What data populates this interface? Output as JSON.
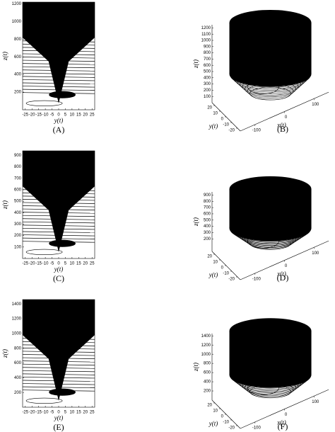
{
  "chart_data": [
    {
      "type": "line",
      "caption": "(A)",
      "x_label": "y(t)",
      "y_label": "z(t)",
      "xlim": [
        -27,
        27
      ],
      "xticks": [
        -25,
        -20,
        -15,
        -10,
        -5,
        0,
        5,
        10,
        15,
        20,
        25
      ],
      "ylim": [
        0,
        1220
      ],
      "yticks": [
        200,
        400,
        600,
        800,
        1000,
        1200
      ]
    },
    {
      "type": "line3d",
      "caption": "(B)",
      "x_label": "x(t)",
      "y_label": "y(t)",
      "z_label": "z(t)",
      "zlim": [
        0,
        1250
      ],
      "zticks": [
        100,
        200,
        300,
        400,
        500,
        600,
        700,
        800,
        900,
        1000,
        1100,
        1200
      ],
      "yticks": [
        20,
        10,
        0,
        -10,
        -20
      ],
      "xticks": [
        -100,
        0,
        100
      ]
    },
    {
      "type": "line",
      "caption": "(C)",
      "x_label": "y(t)",
      "y_label": "z(t)",
      "xlim": [
        -27,
        27
      ],
      "xticks": [
        -25,
        -20,
        -15,
        -10,
        -5,
        0,
        5,
        10,
        15,
        20,
        25
      ],
      "ylim": [
        0,
        940
      ],
      "yticks": [
        100,
        200,
        300,
        400,
        500,
        600,
        700,
        800,
        900
      ]
    },
    {
      "type": "line3d",
      "caption": "(D)",
      "x_label": "x(t)",
      "y_label": "y(t)",
      "z_label": "z(t)",
      "zlim": [
        0,
        950
      ],
      "zticks": [
        200,
        300,
        400,
        500,
        600,
        700,
        800,
        900
      ],
      "yticks": [
        20,
        10,
        0,
        -10,
        -20
      ],
      "xticks": [
        -100,
        0,
        100
      ]
    },
    {
      "type": "line",
      "caption": "(E)",
      "x_label": "y(t)",
      "y_label": "z(t)",
      "xlim": [
        -27,
        27
      ],
      "xticks": [
        -25,
        -20,
        -15,
        -10,
        -5,
        0,
        5,
        10,
        15,
        20,
        25
      ],
      "ylim": [
        0,
        1460
      ],
      "yticks": [
        200,
        400,
        600,
        800,
        1000,
        1200,
        1400
      ]
    },
    {
      "type": "line3d",
      "caption": "(F)",
      "x_label": "x(t)",
      "y_label": "y(t)",
      "z_label": "z(t)",
      "zlim": [
        0,
        1450
      ],
      "zticks": [
        200,
        400,
        600,
        800,
        1000,
        1200,
        1400
      ],
      "yticks": [
        20,
        10,
        0,
        -10,
        -20
      ],
      "xticks": [
        -100,
        0,
        100
      ]
    }
  ]
}
